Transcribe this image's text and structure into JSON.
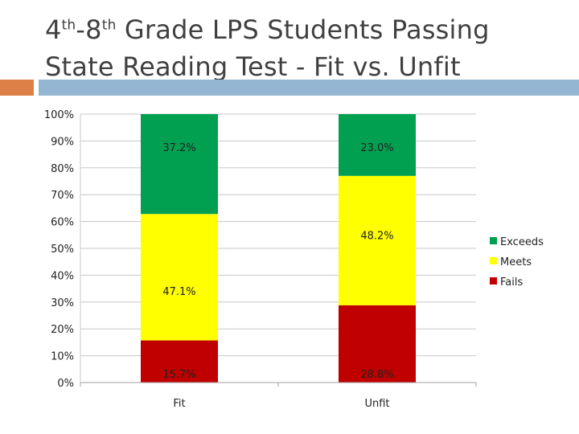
{
  "slide": {
    "title_line1_pre": "4",
    "title_sup1": "th",
    "title_line1_mid": "-8",
    "title_sup2": "th",
    "title_line1_post": " Grade LPS Students Passing",
    "title_line2": "State Reading Test - Fit vs. Unfit",
    "accent_color": "#dd8047",
    "rule_color": "#94b6d2"
  },
  "chart_data": {
    "type": "bar",
    "stacked": true,
    "percent_stacked": true,
    "categories": [
      "Fit",
      "Unfit"
    ],
    "series": [
      {
        "name": "Fails",
        "values": [
          15.7,
          28.8
        ],
        "labels": [
          "15.7%",
          "28.8%"
        ],
        "color": "#c00000"
      },
      {
        "name": "Meets",
        "values": [
          47.1,
          48.2
        ],
        "labels": [
          "47.1%",
          "48.2%"
        ],
        "color": "#ffff00"
      },
      {
        "name": "Exceeds",
        "values": [
          37.2,
          23.0
        ],
        "labels": [
          "37.2%",
          "23.0%"
        ],
        "color": "#00a050"
      }
    ],
    "legend_order": [
      "Exceeds",
      "Meets",
      "Fails"
    ],
    "yticks": [
      "0%",
      "10%",
      "20%",
      "30%",
      "40%",
      "50%",
      "60%",
      "70%",
      "80%",
      "90%",
      "100%"
    ],
    "ylim": [
      0,
      100
    ],
    "grid": true,
    "legend_position": "right",
    "title": "",
    "xlabel": "",
    "ylabel": ""
  }
}
